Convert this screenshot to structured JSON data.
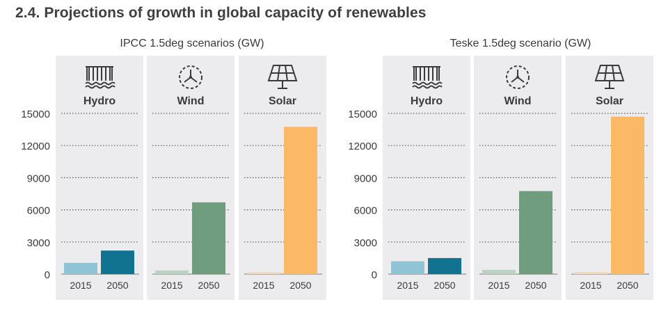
{
  "page": {
    "title": "2.4. Projections of growth in global capacity of renewables"
  },
  "colors": {
    "panel_bg": "#ececee",
    "hydro_2015": "#8ec4d3",
    "hydro_2050": "#117390",
    "wind_2015": "#bcd2c3",
    "wind_2050": "#6f9d7e",
    "solar_2015": "#f8d8b2",
    "solar_2050": "#fbb965",
    "grid": "#555555",
    "text": "#3a3a3a"
  },
  "chart_data": [
    {
      "type": "bar",
      "title": "IPCC 1.5deg scenarios (GW)",
      "ylim": [
        0,
        15000
      ],
      "yticks": [
        "0",
        "3000",
        "6000",
        "9000",
        "12000",
        "15000"
      ],
      "categories": [
        "2015",
        "2050"
      ],
      "grid": true,
      "panels": [
        {
          "name": "Hydro",
          "icon": "hydro-dam-icon",
          "values": [
            1050,
            2200
          ]
        },
        {
          "name": "Wind",
          "icon": "wind-turbine-icon",
          "values": [
            350,
            6700
          ]
        },
        {
          "name": "Solar",
          "icon": "solar-panel-icon",
          "values": [
            180,
            13750
          ]
        }
      ]
    },
    {
      "type": "bar",
      "title": "Teske 1.5deg scenario (GW)",
      "ylim": [
        0,
        15000
      ],
      "yticks": [
        "0",
        "3000",
        "6000",
        "9000",
        "12000",
        "15000"
      ],
      "categories": [
        "2015",
        "2050"
      ],
      "grid": true,
      "panels": [
        {
          "name": "Hydro",
          "icon": "hydro-dam-icon",
          "values": [
            1200,
            1500
          ]
        },
        {
          "name": "Wind",
          "icon": "wind-turbine-icon",
          "values": [
            400,
            7750
          ]
        },
        {
          "name": "Solar",
          "icon": "solar-panel-icon",
          "values": [
            200,
            14700
          ]
        }
      ]
    }
  ]
}
